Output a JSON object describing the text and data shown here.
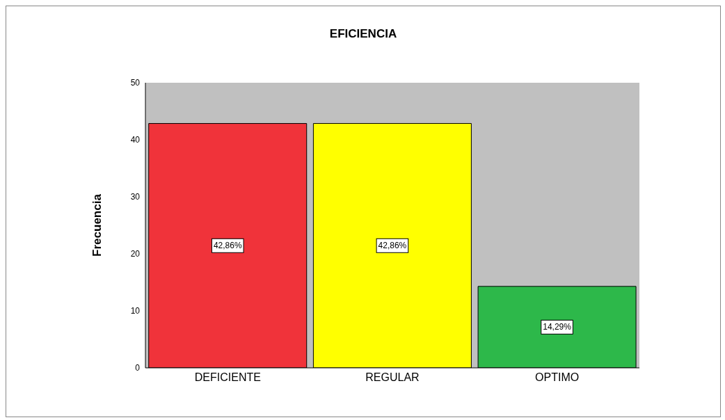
{
  "chart_data": {
    "type": "bar",
    "title": "EFICIENCIA",
    "ylabel": "Frecuencia",
    "categories": [
      "DEFICIENTE",
      "REGULAR",
      "OPTIMO"
    ],
    "values": [
      42.86,
      42.86,
      14.29
    ],
    "colors": [
      "#f0333a",
      "#ffff00",
      "#2db84a"
    ],
    "value_labels": [
      "42,86%",
      "42,86%",
      "14,29%"
    ],
    "ylim": [
      0,
      50
    ],
    "yticks": [
      0,
      10,
      20,
      30,
      40,
      50
    ],
    "grid": false
  }
}
